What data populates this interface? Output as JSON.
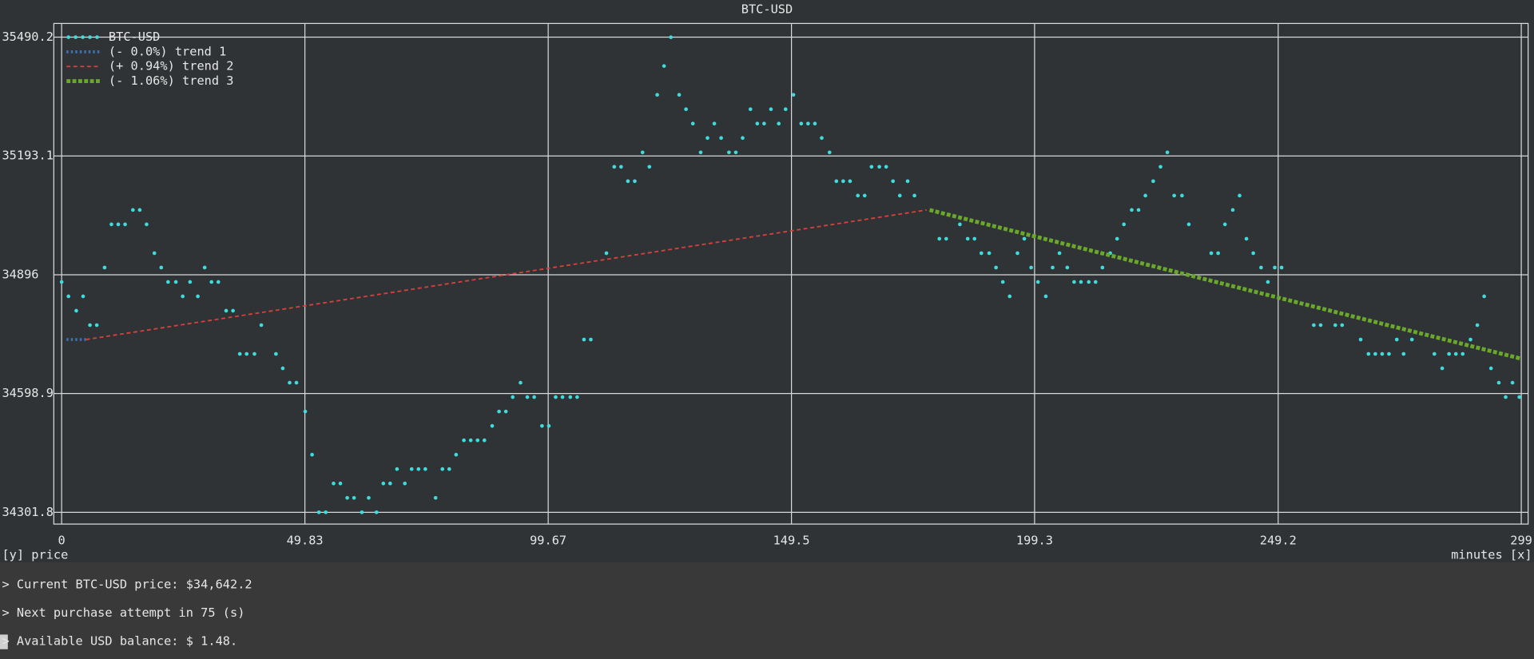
{
  "chart_data": {
    "type": "scatter",
    "title": "BTC-USD",
    "xlabel": "minutes [x]",
    "ylabel": "[y] price",
    "xlim": [
      0,
      299
    ],
    "ylim": [
      34301.8,
      35490.2
    ],
    "xticks": [
      0,
      49.83,
      99.67,
      149.5,
      199.3,
      249.2,
      299
    ],
    "yticks": [
      34301.8,
      34598.9,
      34896,
      35193.1,
      35490.2
    ],
    "grid": true,
    "legend": "upper left",
    "series": [
      {
        "name": "BTC-USD",
        "color": "#3fdcdc",
        "marker": "dot",
        "x": [
          0.0,
          1.4,
          3.0,
          4.4,
          5.8,
          7.2,
          8.8,
          10.2,
          11.6,
          13.0,
          14.6,
          16.0,
          17.4,
          19.0,
          20.4,
          21.8,
          23.4,
          24.8,
          26.3,
          27.9,
          29.3,
          30.7,
          32.1,
          33.7,
          35.1,
          36.5,
          37.9,
          39.5,
          40.9,
          43.9,
          45.3,
          46.7,
          48.1,
          49.9,
          51.3,
          52.7,
          54.1,
          55.7,
          57.1,
          58.5,
          59.9,
          61.5,
          62.9,
          64.5,
          65.9,
          67.3,
          68.7,
          70.3,
          71.7,
          73.1,
          74.5,
          76.6,
          78.0,
          79.4,
          80.8,
          82.4,
          83.8,
          85.2,
          86.6,
          88.2,
          89.6,
          91.0,
          92.4,
          94.0,
          95.4,
          96.8,
          98.4,
          99.8,
          101.2,
          102.6,
          104.2,
          105.6,
          107.0,
          108.4,
          111.6,
          113.2,
          114.6,
          116.0,
          117.4,
          119.0,
          120.4,
          122.0,
          123.4,
          124.8,
          126.5,
          127.9,
          129.3,
          130.9,
          132.3,
          133.7,
          135.1,
          136.7,
          138.1,
          139.5,
          141.1,
          142.5,
          143.9,
          145.3,
          146.9,
          148.3,
          149.9,
          151.5,
          152.9,
          154.3,
          155.7,
          157.3,
          158.7,
          160.1,
          161.5,
          163.1,
          164.5,
          165.9,
          167.5,
          168.9,
          170.3,
          171.7,
          173.3,
          174.7,
          179.8,
          181.2,
          184.0,
          185.6,
          187.0,
          188.4,
          190.0,
          191.4,
          192.8,
          194.2,
          195.8,
          197.2,
          198.6,
          200.0,
          201.6,
          203.0,
          204.4,
          206.0,
          207.4,
          208.8,
          210.4,
          211.8,
          213.2,
          214.8,
          216.2,
          217.6,
          219.2,
          220.6,
          222.0,
          223.6,
          225.1,
          226.5,
          227.9,
          229.5,
          230.9,
          235.5,
          236.9,
          238.3,
          239.9,
          241.3,
          242.7,
          244.1,
          245.7,
          247.1,
          248.5,
          249.9,
          256.5,
          257.9,
          260.9,
          262.3,
          266.1,
          267.7,
          269.1,
          270.5,
          271.9,
          273.5,
          274.9,
          276.6,
          281.2,
          282.8,
          284.2,
          285.6,
          287.0,
          288.6,
          290.0,
          291.4,
          292.8,
          294.4,
          295.8,
          297.2,
          298.6
        ],
        "values": [
          34878,
          34842,
          34806,
          34842,
          34770,
          34770,
          34914,
          35022,
          35022,
          35022,
          35058,
          35058,
          35022,
          34950,
          34914,
          34878,
          34878,
          34842,
          34878,
          34842,
          34914,
          34878,
          34878,
          34806,
          34806,
          34698,
          34698,
          34698,
          34770,
          34698,
          34662,
          34626,
          34626,
          34554,
          34446,
          34302,
          34302,
          34374,
          34374,
          34338,
          34338,
          34302,
          34338,
          34302,
          34374,
          34374,
          34410,
          34374,
          34410,
          34410,
          34410,
          34338,
          34410,
          34410,
          34446,
          34482,
          34482,
          34482,
          34482,
          34518,
          34554,
          34554,
          34590,
          34626,
          34590,
          34590,
          34518,
          34518,
          34590,
          34590,
          34590,
          34590,
          34734,
          34734,
          34950,
          35166,
          35166,
          35130,
          35130,
          35202,
          35166,
          35346,
          35418,
          35490,
          35346,
          35310,
          35274,
          35202,
          35238,
          35274,
          35238,
          35202,
          35202,
          35238,
          35310,
          35274,
          35274,
          35310,
          35274,
          35310,
          35346,
          35274,
          35274,
          35274,
          35238,
          35202,
          35130,
          35130,
          35130,
          35094,
          35094,
          35166,
          35166,
          35166,
          35130,
          35094,
          35130,
          35094,
          34986,
          34986,
          35022,
          34986,
          34986,
          34950,
          34950,
          34914,
          34878,
          34842,
          34950,
          34986,
          34914,
          34878,
          34842,
          34914,
          34950,
          34914,
          34878,
          34878,
          34878,
          34878,
          34914,
          34950,
          34986,
          35022,
          35058,
          35058,
          35094,
          35130,
          35166,
          35202,
          35094,
          35094,
          35022,
          34950,
          34950,
          35022,
          35058,
          35094,
          34986,
          34950,
          34914,
          34878,
          34914,
          34914,
          34770,
          34770,
          34770,
          34770,
          34734,
          34698,
          34698,
          34698,
          34698,
          34734,
          34698,
          34734,
          34698,
          34662,
          34698,
          34698,
          34698,
          34734,
          34770,
          34842,
          34662,
          34626,
          34590,
          34626,
          34590
        ]
      },
      {
        "name": "(- 0.0%) trend 1",
        "color": "#3f72b0",
        "marker": "star",
        "x": [
          1.0,
          5.0
        ],
        "values": [
          34734,
          34734
        ]
      },
      {
        "name": "(+ 0.94%) trend 2",
        "color": "#d8403c",
        "marker": "dash",
        "x": [
          5.0,
          177.2
        ],
        "values": [
          34734,
          35058
        ]
      },
      {
        "name": "(- 1.06%) trend 3",
        "color": "#6aa82c",
        "marker": "square",
        "x": [
          177.8,
          299
        ],
        "values": [
          35058,
          34686
        ]
      }
    ]
  },
  "terminal": {
    "lines": [
      "> Current BTC-USD price: $34,642.2",
      "> Next purchase attempt in 75 (s)",
      "> Available USD balance: $ 1.48."
    ]
  }
}
